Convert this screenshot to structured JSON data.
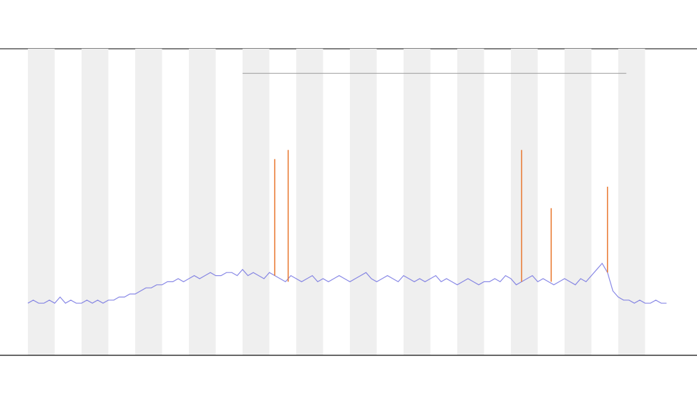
{
  "chart_data": {
    "type": "line",
    "xlim": [
      0,
      240
    ],
    "ylim": [
      0,
      100
    ],
    "shaded_regions": [
      [
        0,
        10
      ],
      [
        20,
        30
      ],
      [
        40,
        50
      ],
      [
        60,
        70
      ],
      [
        80,
        90
      ],
      [
        100,
        110
      ],
      [
        120,
        130
      ],
      [
        140,
        150
      ],
      [
        160,
        170
      ],
      [
        180,
        190
      ],
      [
        200,
        210
      ],
      [
        220,
        230
      ]
    ],
    "shade_color": "#efefef",
    "series": [
      {
        "color": "#6a6ae0",
        "x": [
          0,
          2,
          4,
          6,
          8,
          10,
          12,
          14,
          16,
          18,
          20,
          22,
          24,
          26,
          28,
          30,
          32,
          34,
          36,
          38,
          40,
          42,
          44,
          46,
          48,
          50,
          52,
          54,
          56,
          58,
          60,
          62,
          64,
          66,
          68,
          70,
          72,
          74,
          76,
          78,
          80,
          82,
          84,
          86,
          88,
          90,
          92,
          94,
          96,
          98,
          100,
          102,
          104,
          106,
          108,
          110,
          112,
          114,
          116,
          118,
          120,
          122,
          124,
          126,
          128,
          130,
          132,
          134,
          136,
          138,
          140,
          142,
          144,
          146,
          148,
          150,
          152,
          154,
          156,
          158,
          160,
          162,
          164,
          166,
          168,
          170,
          172,
          174,
          176,
          178,
          180,
          182,
          184,
          186,
          188,
          190,
          192,
          194,
          196,
          198,
          200,
          202,
          204,
          206,
          208,
          210,
          212,
          214,
          216,
          218,
          220,
          222,
          224,
          226,
          228,
          230,
          232,
          234,
          236,
          238
        ],
        "values": [
          17,
          18,
          17,
          17,
          18,
          17,
          19,
          17,
          18,
          17,
          17,
          18,
          17,
          18,
          17,
          18,
          18,
          19,
          19,
          20,
          20,
          21,
          22,
          22,
          23,
          23,
          24,
          24,
          25,
          24,
          25,
          26,
          25,
          26,
          27,
          26,
          26,
          27,
          27,
          26,
          28,
          26,
          27,
          26,
          25,
          27,
          26,
          25,
          24,
          26,
          25,
          24,
          25,
          26,
          24,
          25,
          24,
          25,
          26,
          25,
          24,
          25,
          26,
          27,
          25,
          24,
          25,
          26,
          25,
          24,
          26,
          25,
          24,
          25,
          24,
          25,
          26,
          24,
          25,
          24,
          23,
          24,
          25,
          24,
          23,
          24,
          24,
          25,
          24,
          26,
          25,
          23,
          24,
          25,
          26,
          24,
          25,
          24,
          23,
          24,
          25,
          24,
          23,
          25,
          24,
          26,
          28,
          30,
          27,
          21,
          19,
          18,
          18,
          17,
          18,
          17,
          17,
          18,
          17,
          17
        ]
      }
    ],
    "events": {
      "color": "#e8742a",
      "x": [
        92,
        97,
        184,
        195,
        216
      ],
      "values": [
        64,
        67,
        67,
        48,
        55
      ]
    },
    "range": {
      "color": "#999999",
      "x": [
        80,
        223
      ],
      "value": 92
    }
  }
}
